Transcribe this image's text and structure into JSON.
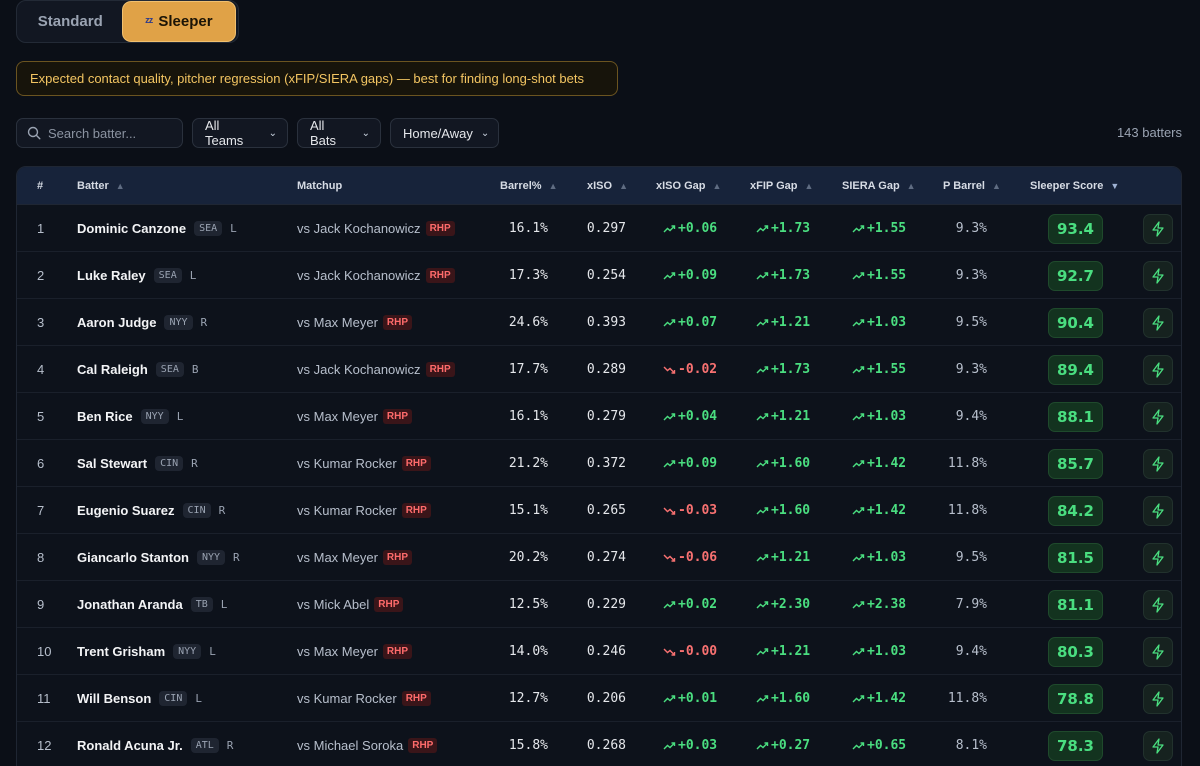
{
  "modes": {
    "standard": "Standard",
    "sleeper": "Sleeper"
  },
  "banner": "Expected contact quality, pitcher regression (xFIP/SIERA gaps) — best for finding long-shot bets",
  "filters": {
    "search_placeholder": "Search batter...",
    "team": "All Teams",
    "bats": "All Bats",
    "location": "Home/Away",
    "count": "143 batters"
  },
  "columns": {
    "rank": "#",
    "batter": "Batter",
    "matchup": "Matchup",
    "barrel": "Barrel%",
    "xiso": "xISO",
    "xiso_gap": "xISO Gap",
    "xfip_gap": "xFIP Gap",
    "siera_gap": "SIERA Gap",
    "p_barrel": "P Barrel",
    "score": "Sleeper Score"
  },
  "accent": "#e0a247",
  "rows": [
    {
      "rank": "1",
      "name": "Dominic Canzone",
      "team": "SEA",
      "hand": "L",
      "pitcher": "vs Jack Kochanowicz",
      "throws": "RHP",
      "barrel": "16.1%",
      "xiso": "0.297",
      "xiso_gap": "+0.06",
      "xiso_dir": "up",
      "xfip_gap": "+1.73",
      "siera_gap": "+1.55",
      "p_barrel": "9.3%",
      "score": "93.4"
    },
    {
      "rank": "2",
      "name": "Luke Raley",
      "team": "SEA",
      "hand": "L",
      "pitcher": "vs Jack Kochanowicz",
      "throws": "RHP",
      "barrel": "17.3%",
      "xiso": "0.254",
      "xiso_gap": "+0.09",
      "xiso_dir": "up",
      "xfip_gap": "+1.73",
      "siera_gap": "+1.55",
      "p_barrel": "9.3%",
      "score": "92.7"
    },
    {
      "rank": "3",
      "name": "Aaron Judge",
      "team": "NYY",
      "hand": "R",
      "pitcher": "vs Max Meyer",
      "throws": "RHP",
      "barrel": "24.6%",
      "xiso": "0.393",
      "xiso_gap": "+0.07",
      "xiso_dir": "up",
      "xfip_gap": "+1.21",
      "siera_gap": "+1.03",
      "p_barrel": "9.5%",
      "score": "90.4"
    },
    {
      "rank": "4",
      "name": "Cal Raleigh",
      "team": "SEA",
      "hand": "B",
      "pitcher": "vs Jack Kochanowicz",
      "throws": "RHP",
      "barrel": "17.7%",
      "xiso": "0.289",
      "xiso_gap": "-0.02",
      "xiso_dir": "down",
      "xfip_gap": "+1.73",
      "siera_gap": "+1.55",
      "p_barrel": "9.3%",
      "score": "89.4"
    },
    {
      "rank": "5",
      "name": "Ben Rice",
      "team": "NYY",
      "hand": "L",
      "pitcher": "vs Max Meyer",
      "throws": "RHP",
      "barrel": "16.1%",
      "xiso": "0.279",
      "xiso_gap": "+0.04",
      "xiso_dir": "up",
      "xfip_gap": "+1.21",
      "siera_gap": "+1.03",
      "p_barrel": "9.4%",
      "score": "88.1"
    },
    {
      "rank": "6",
      "name": "Sal Stewart",
      "team": "CIN",
      "hand": "R",
      "pitcher": "vs Kumar Rocker",
      "throws": "RHP",
      "barrel": "21.2%",
      "xiso": "0.372",
      "xiso_gap": "+0.09",
      "xiso_dir": "up",
      "xfip_gap": "+1.60",
      "siera_gap": "+1.42",
      "p_barrel": "11.8%",
      "score": "85.7"
    },
    {
      "rank": "7",
      "name": "Eugenio Suarez",
      "team": "CIN",
      "hand": "R",
      "pitcher": "vs Kumar Rocker",
      "throws": "RHP",
      "barrel": "15.1%",
      "xiso": "0.265",
      "xiso_gap": "-0.03",
      "xiso_dir": "down",
      "xfip_gap": "+1.60",
      "siera_gap": "+1.42",
      "p_barrel": "11.8%",
      "score": "84.2"
    },
    {
      "rank": "8",
      "name": "Giancarlo Stanton",
      "team": "NYY",
      "hand": "R",
      "pitcher": "vs Max Meyer",
      "throws": "RHP",
      "barrel": "20.2%",
      "xiso": "0.274",
      "xiso_gap": "-0.06",
      "xiso_dir": "down",
      "xfip_gap": "+1.21",
      "siera_gap": "+1.03",
      "p_barrel": "9.5%",
      "score": "81.5"
    },
    {
      "rank": "9",
      "name": "Jonathan Aranda",
      "team": "TB",
      "hand": "L",
      "pitcher": "vs Mick Abel",
      "throws": "RHP",
      "barrel": "12.5%",
      "xiso": "0.229",
      "xiso_gap": "+0.02",
      "xiso_dir": "up",
      "xfip_gap": "+2.30",
      "siera_gap": "+2.38",
      "p_barrel": "7.9%",
      "score": "81.1"
    },
    {
      "rank": "10",
      "name": "Trent Grisham",
      "team": "NYY",
      "hand": "L",
      "pitcher": "vs Max Meyer",
      "throws": "RHP",
      "barrel": "14.0%",
      "xiso": "0.246",
      "xiso_gap": "-0.00",
      "xiso_dir": "down",
      "xfip_gap": "+1.21",
      "siera_gap": "+1.03",
      "p_barrel": "9.4%",
      "score": "80.3"
    },
    {
      "rank": "11",
      "name": "Will Benson",
      "team": "CIN",
      "hand": "L",
      "pitcher": "vs Kumar Rocker",
      "throws": "RHP",
      "barrel": "12.7%",
      "xiso": "0.206",
      "xiso_gap": "+0.01",
      "xiso_dir": "up",
      "xfip_gap": "+1.60",
      "siera_gap": "+1.42",
      "p_barrel": "11.8%",
      "score": "78.8"
    },
    {
      "rank": "12",
      "name": "Ronald Acuna Jr.",
      "team": "ATL",
      "hand": "R",
      "pitcher": "vs Michael Soroka",
      "throws": "RHP",
      "barrel": "15.8%",
      "xiso": "0.268",
      "xiso_gap": "+0.03",
      "xiso_dir": "up",
      "xfip_gap": "+0.27",
      "siera_gap": "+0.65",
      "p_barrel": "8.1%",
      "score": "78.3"
    }
  ]
}
